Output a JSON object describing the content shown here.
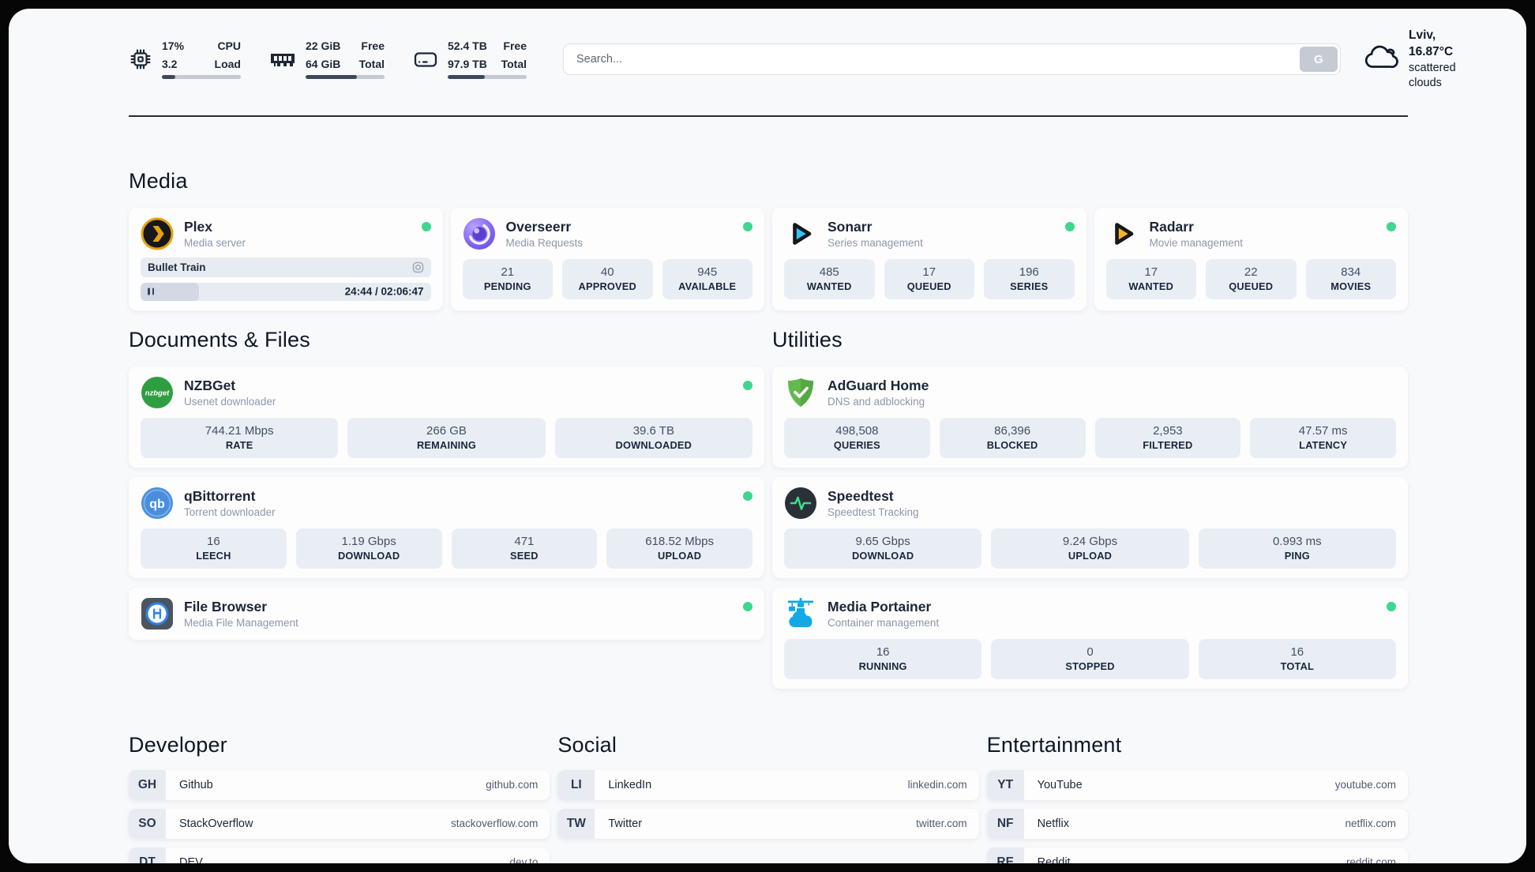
{
  "colors": {
    "status_green": "#3fd68f",
    "panel_bg": "#f7f9fb",
    "stat_box_bg": "#e9eef5",
    "progress_track": "#c4c9d2",
    "progress_fill": "#3d4859"
  },
  "header": {
    "cpu": {
      "value1": "17%",
      "value2": "3.2",
      "label1": "CPU",
      "label2": "Load",
      "progress": 17
    },
    "ram": {
      "value1": "22 GiB",
      "value2": "64 GiB",
      "label1": "Free",
      "label2": "Total",
      "progress": 65
    },
    "disk": {
      "value1": "52.4 TB",
      "value2": "97.9 TB",
      "label1": "Free",
      "label2": "Total",
      "progress": 47
    },
    "search": {
      "placeholder": "Search...",
      "button_label": "G"
    },
    "weather": {
      "location_temp": "Lviv, 16.87°C",
      "condition": "scattered clouds"
    }
  },
  "media": {
    "title": "Media",
    "plex": {
      "name": "Plex",
      "subtitle": "Media server",
      "now_playing": "Bullet Train",
      "time": "24:44 / 02:06:47",
      "progress": 20
    },
    "overseerr": {
      "name": "Overseerr",
      "subtitle": "Media Requests",
      "stats": [
        {
          "value": "21",
          "label": "PENDING"
        },
        {
          "value": "40",
          "label": "APPROVED"
        },
        {
          "value": "945",
          "label": "AVAILABLE"
        }
      ]
    },
    "sonarr": {
      "name": "Sonarr",
      "subtitle": "Series management",
      "stats": [
        {
          "value": "485",
          "label": "WANTED"
        },
        {
          "value": "17",
          "label": "QUEUED"
        },
        {
          "value": "196",
          "label": "SERIES"
        }
      ]
    },
    "radarr": {
      "name": "Radarr",
      "subtitle": "Movie management",
      "stats": [
        {
          "value": "17",
          "label": "WANTED"
        },
        {
          "value": "22",
          "label": "QUEUED"
        },
        {
          "value": "834",
          "label": "MOVIES"
        }
      ]
    }
  },
  "documents": {
    "title": "Documents & Files",
    "nzbget": {
      "name": "NZBGet",
      "subtitle": "Usenet downloader",
      "stats": [
        {
          "value": "744.21 Mbps",
          "label": "RATE"
        },
        {
          "value": "266 GB",
          "label": "REMAINING"
        },
        {
          "value": "39.6 TB",
          "label": "DOWNLOADED"
        }
      ]
    },
    "qbittorrent": {
      "name": "qBittorrent",
      "subtitle": "Torrent downloader",
      "stats": [
        {
          "value": "16",
          "label": "LEECH"
        },
        {
          "value": "1.19 Gbps",
          "label": "DOWNLOAD"
        },
        {
          "value": "471",
          "label": "SEED"
        },
        {
          "value": "618.52 Mbps",
          "label": "UPLOAD"
        }
      ]
    },
    "filebrowser": {
      "name": "File Browser",
      "subtitle": "Media File Management"
    }
  },
  "utilities": {
    "title": "Utilities",
    "adguard": {
      "name": "AdGuard Home",
      "subtitle": "DNS and adblocking",
      "stats": [
        {
          "value": "498,508",
          "label": "QUERIES"
        },
        {
          "value": "86,396",
          "label": "BLOCKED"
        },
        {
          "value": "2,953",
          "label": "FILTERED"
        },
        {
          "value": "47.57 ms",
          "label": "LATENCY"
        }
      ]
    },
    "speedtest": {
      "name": "Speedtest",
      "subtitle": "Speedtest Tracking",
      "stats": [
        {
          "value": "9.65 Gbps",
          "label": "DOWNLOAD"
        },
        {
          "value": "9.24 Gbps",
          "label": "UPLOAD"
        },
        {
          "value": "0.993 ms",
          "label": "PING"
        }
      ]
    },
    "portainer": {
      "name": "Media Portainer",
      "subtitle": "Container management",
      "stats": [
        {
          "value": "16",
          "label": "RUNNING"
        },
        {
          "value": "0",
          "label": "STOPPED"
        },
        {
          "value": "16",
          "label": "TOTAL"
        }
      ]
    }
  },
  "links": {
    "developer": {
      "title": "Developer",
      "items": [
        {
          "abbr": "GH",
          "name": "Github",
          "url": "github.com"
        },
        {
          "abbr": "SO",
          "name": "StackOverflow",
          "url": "stackoverflow.com"
        },
        {
          "abbr": "DT",
          "name": "DEV",
          "url": "dev.to"
        }
      ]
    },
    "social": {
      "title": "Social",
      "items": [
        {
          "abbr": "LI",
          "name": "LinkedIn",
          "url": "linkedin.com"
        },
        {
          "abbr": "TW",
          "name": "Twitter",
          "url": "twitter.com"
        }
      ]
    },
    "entertainment": {
      "title": "Entertainment",
      "items": [
        {
          "abbr": "YT",
          "name": "YouTube",
          "url": "youtube.com"
        },
        {
          "abbr": "NF",
          "name": "Netflix",
          "url": "netflix.com"
        },
        {
          "abbr": "RE",
          "name": "Reddit",
          "url": "reddit.com"
        }
      ]
    }
  }
}
